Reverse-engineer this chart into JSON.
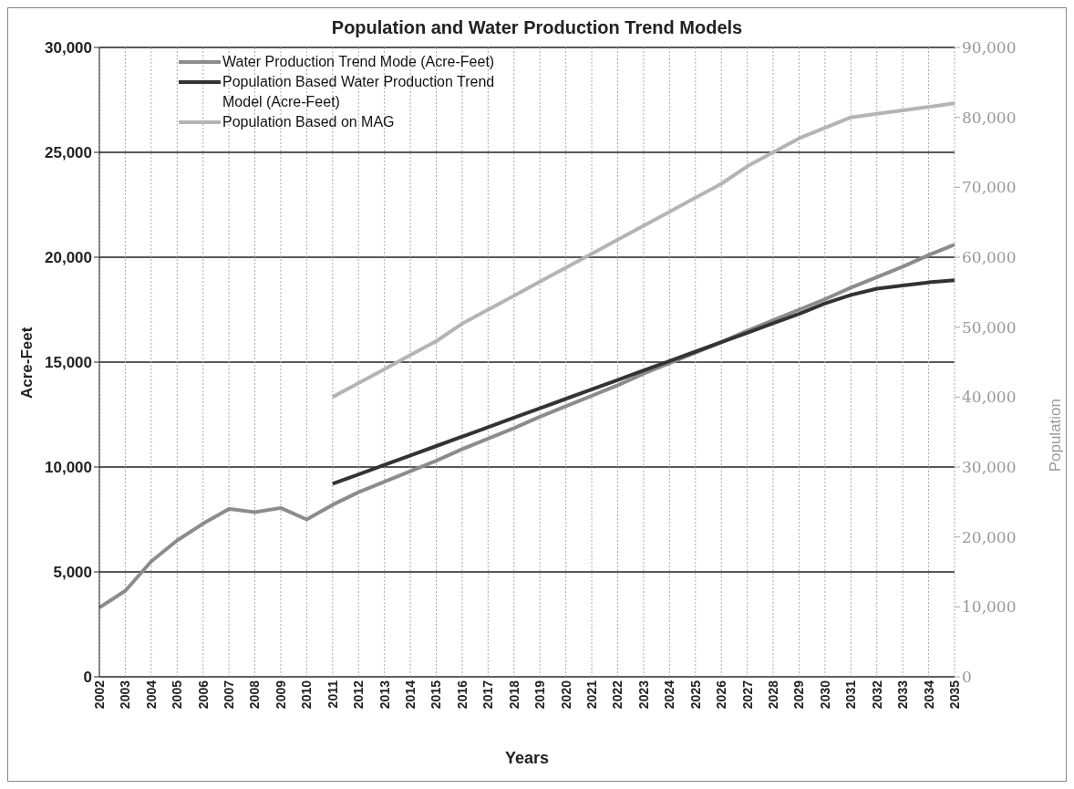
{
  "chart_data": {
    "type": "line",
    "title": "Population and Water Production Trend Models",
    "xlabel": "Years",
    "ylabel": "Acre-Feet",
    "y2label": "Population",
    "categories": [
      "2002",
      "2003",
      "2004",
      "2005",
      "2006",
      "2007",
      "2008",
      "2009",
      "2010",
      "2011",
      "2012",
      "2013",
      "2014",
      "2015",
      "2016",
      "2017",
      "2018",
      "2019",
      "2020",
      "2021",
      "2022",
      "2023",
      "2024",
      "2025",
      "2026",
      "2027",
      "2028",
      "2029",
      "2030",
      "2031",
      "2032",
      "2033",
      "2034",
      "2035"
    ],
    "series": [
      {
        "name": "Water Production Trend Mode (Acre-Feet)",
        "color": "#8c8c8c",
        "values": [
          3300,
          4100,
          5500,
          6500,
          7300,
          8000,
          7850,
          8050,
          7500,
          8200,
          8800,
          9300,
          9800,
          10300,
          10850,
          11350,
          11850,
          12400,
          12900,
          13400,
          13900,
          14450,
          14950,
          15450,
          15950,
          16500,
          17000,
          17500,
          18000,
          18550,
          19050,
          19550,
          20100,
          20600
        ]
      },
      {
        "name": "Population Based Water Production Trend Model (Acre-Feet)",
        "color": "#333333",
        "values": [
          null,
          null,
          null,
          null,
          null,
          null,
          null,
          null,
          null,
          9200,
          9650,
          10100,
          10550,
          11000,
          11450,
          11900,
          12350,
          12800,
          13250,
          13700,
          14150,
          14600,
          15050,
          15500,
          15950,
          16400,
          16850,
          17300,
          17800,
          18200,
          18500,
          18650,
          18800,
          18900
        ]
      },
      {
        "name": "Population Based on MAG",
        "color": "#b4b4b4",
        "axis": "y2",
        "values": [
          null,
          null,
          null,
          null,
          null,
          null,
          null,
          null,
          null,
          40000,
          42000,
          44000,
          46000,
          48000,
          50500,
          52500,
          54500,
          56500,
          58500,
          60500,
          62500,
          64500,
          66500,
          68500,
          70500,
          73000,
          75000,
          77000,
          78500,
          80000,
          80500,
          81000,
          81500,
          82000
        ]
      }
    ],
    "ylim": [
      0,
      30000
    ],
    "yticks": [
      0,
      {
        "value": 5000,
        "label": "5,000"
      },
      {
        "value": 10000,
        "label": "10,000"
      },
      {
        "value": 15000,
        "label": "15,000"
      },
      {
        "value": 20000,
        "label": "20,000"
      },
      {
        "value": 25000,
        "label": "25,000"
      },
      {
        "value": 30000,
        "label": "30,000"
      }
    ],
    "y2lim": [
      0,
      90000
    ],
    "y2ticks": [
      0,
      {
        "value": 10000,
        "label": "10,000"
      },
      {
        "value": 20000,
        "label": "20,000"
      },
      {
        "value": 30000,
        "label": "30,000"
      },
      {
        "value": 40000,
        "label": "40,000"
      },
      {
        "value": 50000,
        "label": "50,000"
      },
      {
        "value": 60000,
        "label": "60,000"
      },
      {
        "value": 70000,
        "label": "70,000"
      },
      {
        "value": 80000,
        "label": "80,000"
      },
      {
        "value": 90000,
        "label": "90,000"
      }
    ],
    "grid": true,
    "legend": "top left",
    "marker": "none",
    "line_style": "solid"
  }
}
